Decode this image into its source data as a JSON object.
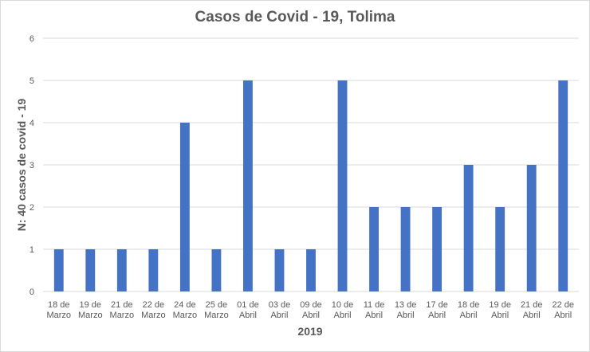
{
  "chart_data": {
    "type": "bar",
    "title": "Casos de Covid - 19, Tolima",
    "xlabel": "2019",
    "ylabel": "N: 40 casos  de covid - 19",
    "categories": [
      [
        "18 de",
        "Marzo"
      ],
      [
        "19 de",
        "Marzo"
      ],
      [
        "21 de",
        "Marzo"
      ],
      [
        "22 de",
        "Marzo"
      ],
      [
        "24 de",
        "Marzo"
      ],
      [
        "25 de",
        "Marzo"
      ],
      [
        "01 de",
        "Abril"
      ],
      [
        "03 de",
        "Abril"
      ],
      [
        "09 de",
        "Abril"
      ],
      [
        "10 de",
        "Abril"
      ],
      [
        "11 de",
        "Abril"
      ],
      [
        "13 de",
        "Abril"
      ],
      [
        "17 de",
        "Abril"
      ],
      [
        "18 de",
        "Abril"
      ],
      [
        "19 de",
        "Abril"
      ],
      [
        "21 de",
        "Abril"
      ],
      [
        "22 de",
        "Abril"
      ]
    ],
    "values": [
      1,
      1,
      1,
      1,
      4,
      1,
      5,
      1,
      1,
      5,
      2,
      2,
      2,
      3,
      2,
      3,
      5
    ],
    "ylim": [
      0,
      6
    ],
    "yticks": [
      "0",
      "1",
      "2",
      "3",
      "4",
      "5",
      "6"
    ],
    "grid": true,
    "legend": "none",
    "bar_color": "#4472c4"
  }
}
